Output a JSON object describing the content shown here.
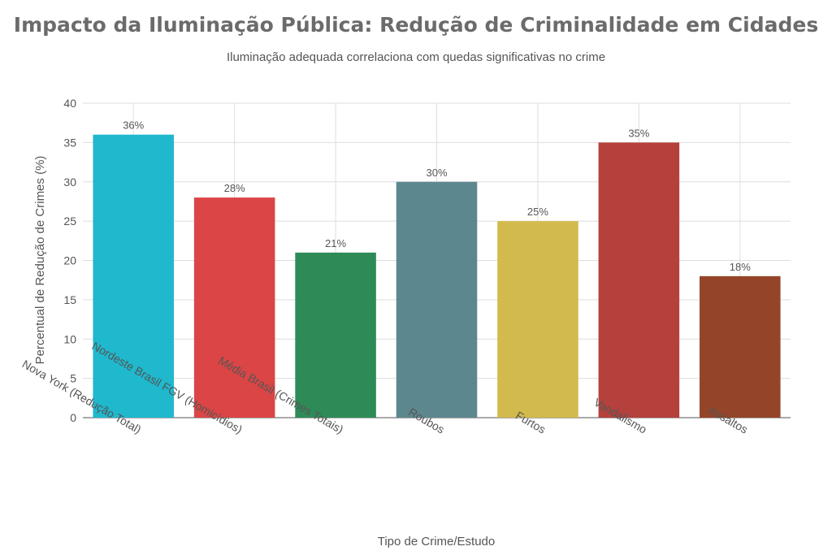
{
  "chart_data": {
    "type": "bar",
    "title": "Impacto da Iluminação Pública: Redução de Criminalidade em Cidades",
    "subtitle": "Iluminação adequada correlaciona com quedas significativas no crime",
    "xlabel": "Tipo de Crime/Estudo",
    "ylabel": "Percentual de Redução de Crimes (%)",
    "ylim": [
      0,
      40
    ],
    "yticks": [
      0,
      5,
      10,
      15,
      20,
      25,
      30,
      35,
      40
    ],
    "grid": true,
    "categories": [
      "Nova York (Redução Total)",
      "Nordeste Brasil FGV (Homicídios)",
      "Média Brasil (Crimes Totais)",
      "Roubos",
      "Furtos",
      "Vandalismo",
      "Assaltos"
    ],
    "values": [
      36,
      28,
      21,
      30,
      25,
      35,
      18
    ],
    "data_labels": [
      "36%",
      "28%",
      "21%",
      "30%",
      "25%",
      "35%",
      "18%"
    ],
    "colors": [
      "#1fb8cd",
      "#db4545",
      "#2e8b57",
      "#5d878f",
      "#d2ba4c",
      "#b4413c",
      "#944428"
    ]
  }
}
